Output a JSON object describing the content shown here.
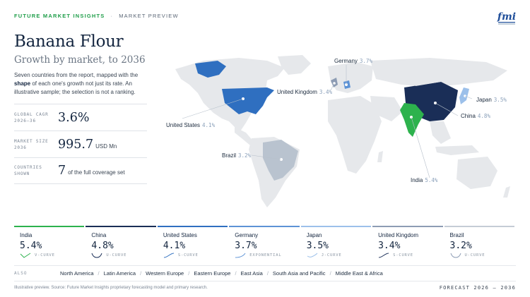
{
  "header": {
    "brand": "FUTURE MARKET INSIGHTS",
    "separator": "·",
    "preview": "MARKET PREVIEW",
    "logo_text": "fmi"
  },
  "title": "Banana Flour",
  "subtitle": "Growth by market, to 2036",
  "description": {
    "part1": "Seven countries from the report, mapped with the ",
    "bold": "shape",
    "part2": " of each one's growth not just its rate. An illustrative sample; the selection is not a ranking."
  },
  "stats": [
    {
      "label1": "GLOBAL CAGR",
      "label2": "2026–36",
      "value": "3.6%",
      "unit": ""
    },
    {
      "label1": "MARKET SIZE",
      "label2": "2036",
      "value": "995.7",
      "unit": "USD Mn"
    },
    {
      "label1": "COUNTRIES",
      "label2": "SHOWN",
      "value": "7",
      "unit": "of the full coverage set"
    }
  ],
  "map_labels": {
    "germany": {
      "name": "Germany",
      "value": "3.7%"
    },
    "united_kingdom": {
      "name": "United Kingdom",
      "value": "3.4%"
    },
    "japan": {
      "name": "Japan",
      "value": "3.5%"
    },
    "china": {
      "name": "China",
      "value": "4.8%"
    },
    "united_states": {
      "name": "United States",
      "value": "4.1%"
    },
    "brazil": {
      "name": "Brazil",
      "value": "3.2%"
    },
    "india": {
      "name": "India",
      "value": "5.4%"
    }
  },
  "cards": [
    {
      "name": "India",
      "value": "5.4%",
      "shape": "V-CURVE",
      "color": "#2db24d"
    },
    {
      "name": "China",
      "value": "4.8%",
      "shape": "U-CURVE",
      "color": "#1a2e57"
    },
    {
      "name": "United States",
      "value": "4.1%",
      "shape": "S-CURVE",
      "color": "#2f6fc0"
    },
    {
      "name": "Germany",
      "value": "3.7%",
      "shape": "EXPONENTIAL",
      "color": "#5d93d6"
    },
    {
      "name": "Japan",
      "value": "3.5%",
      "shape": "J-CURVE",
      "color": "#9cc0ea"
    },
    {
      "name": "United Kingdom",
      "value": "3.4%",
      "shape": "S-CURVE",
      "color": "#8d9cb4"
    },
    {
      "name": "Brazil",
      "value": "3.2%",
      "shape": "U-CURVE",
      "color": "#c5ccd6"
    }
  ],
  "also": {
    "label": "ALSO",
    "items": [
      "North America",
      "Latin America",
      "Western Europe",
      "Eastern Europe",
      "East Asia",
      "South Asia and Pacific",
      "Middle East & Africa"
    ]
  },
  "footer": {
    "source": "Illustrative preview. Source: Future Market Insights proprietary forecasting model and primary research.",
    "forecast": "FORECAST 2026 – 2036"
  },
  "colors": {
    "india": "#2db24d",
    "china": "#1a2e57",
    "united_states": "#2f6fc0",
    "germany": "#5d93d6",
    "japan": "#9cc0ea",
    "united_kingdom": "#8d9cb4",
    "brazil": "#b9c3cf",
    "land": "#e6e8eb"
  }
}
